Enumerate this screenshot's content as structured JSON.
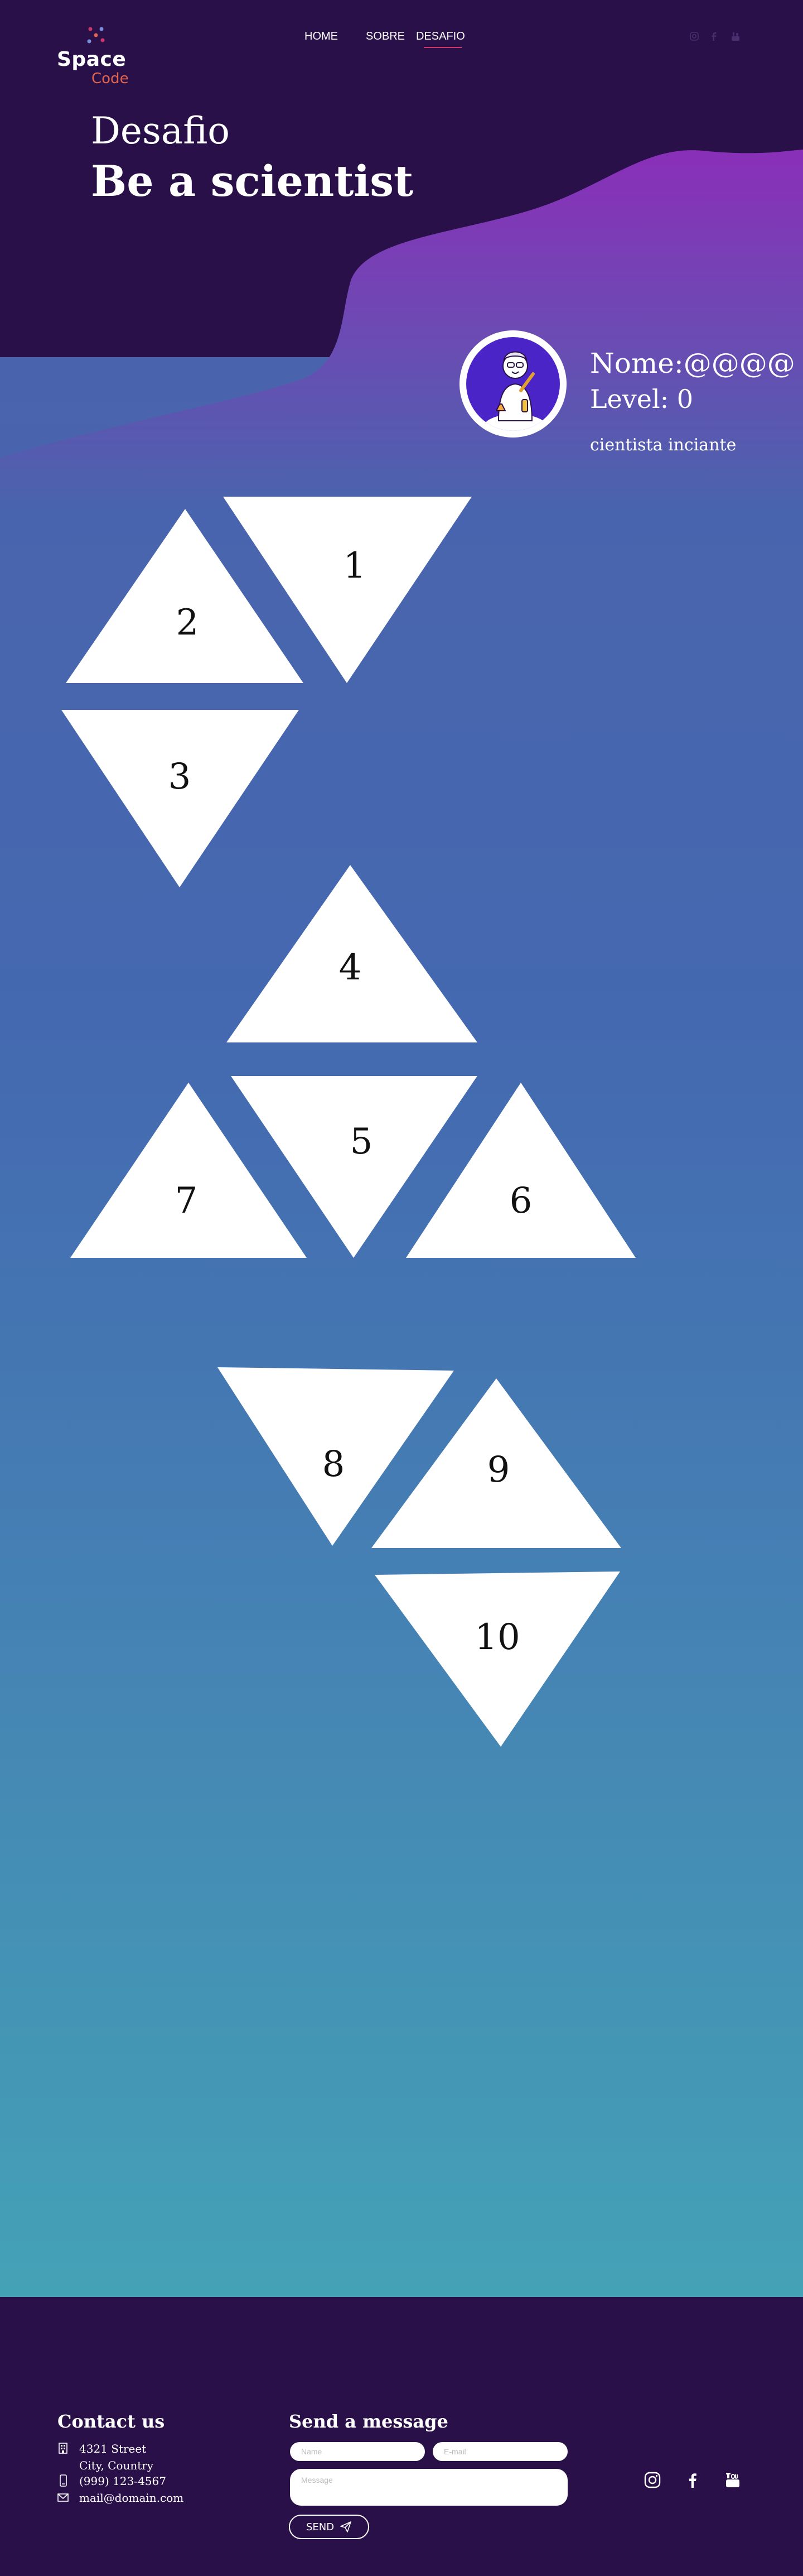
{
  "nav": {
    "logo_line1": "Space",
    "logo_line2": "Code",
    "links": [
      "HOME",
      "SOBRE",
      "DESAFIO"
    ],
    "active": "DESAFIO",
    "social_icons": [
      "instagram-icon",
      "facebook-icon",
      "youtube-icon"
    ]
  },
  "hero": {
    "subtitle": "Desafio",
    "title": "Be a scientist"
  },
  "profile": {
    "name": "Nome:@@@@",
    "level": "Level: 0",
    "rank": "cientista inciante"
  },
  "challenges": [
    "1",
    "2",
    "3",
    "4",
    "5",
    "6",
    "7",
    "8",
    "9",
    "10"
  ],
  "footer": {
    "contact_heading": "Contact us",
    "address_line1": "4321 Street",
    "address_line2": "City, Country",
    "phone": "(999) 123-4567",
    "email": "mail@domain.com",
    "message_heading": "Send a message",
    "name_placeholder": "Name",
    "email_placeholder": "E-mail",
    "message_placeholder": "Message",
    "send_label": "SEND",
    "social_icons": [
      "instagram-icon",
      "facebook-icon",
      "youtube-icon"
    ]
  },
  "colors": {
    "header_bg": "#2a1048",
    "wave_top": "#8a2fb8",
    "wave_bottom": "#4f62ad",
    "main_top": "#4a63ad",
    "main_bottom": "#44a2b6",
    "accent": "#e0654f",
    "underline": "#c9376b"
  }
}
